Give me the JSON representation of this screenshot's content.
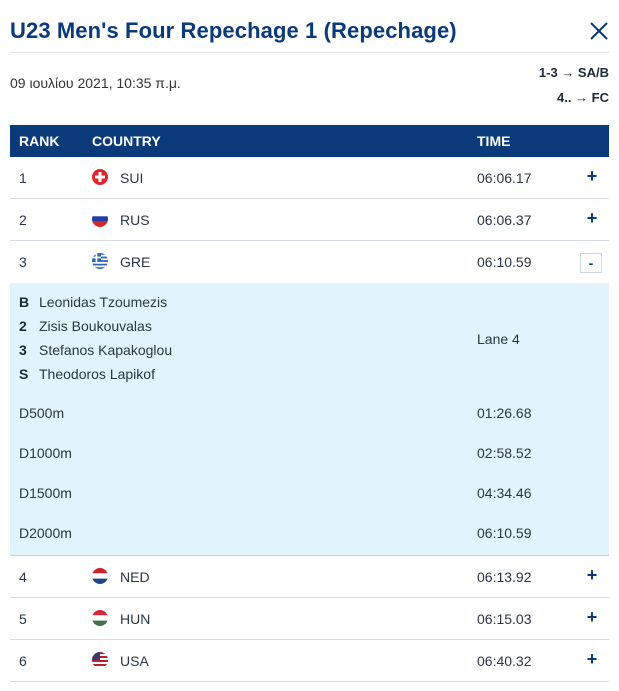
{
  "header": {
    "title": "U23 Men's Four Repechage 1 (Repechage)",
    "date": "09 ιουλίου 2021, 10:35 π.μ.",
    "progression": [
      "1-3 → SA/B",
      "4.. → FC"
    ]
  },
  "table": {
    "columns": {
      "rank": "RANK",
      "country": "COUNTRY",
      "time": "TIME"
    },
    "rows_before": [
      {
        "rank": "1",
        "country": "SUI",
        "time": "06:06.17",
        "flag": "switzerland-flag-icon",
        "toggle": "+"
      },
      {
        "rank": "2",
        "country": "RUS",
        "time": "06:06.37",
        "flag": "russia-flag-icon",
        "toggle": "+"
      },
      {
        "rank": "3",
        "country": "GRE",
        "time": "06:10.59",
        "flag": "greece-flag-icon",
        "toggle": "-"
      }
    ],
    "expanded": {
      "crew": [
        {
          "pos": "B",
          "name": "Leonidas Tzoumezis"
        },
        {
          "pos": "2",
          "name": "Zisis Boukouvalas"
        },
        {
          "pos": "3",
          "name": "Stefanos Kapakoglou"
        },
        {
          "pos": "S",
          "name": "Theodoros Lapikof"
        }
      ],
      "lane": "Lane 4",
      "splits": [
        {
          "label": "D500m",
          "time": "01:26.68"
        },
        {
          "label": "D1000m",
          "time": "02:58.52"
        },
        {
          "label": "D1500m",
          "time": "04:34.46"
        },
        {
          "label": "D2000m",
          "time": "06:10.59"
        }
      ]
    },
    "rows_after": [
      {
        "rank": "4",
        "country": "NED",
        "time": "06:13.92",
        "flag": "netherlands-flag-icon",
        "toggle": "+"
      },
      {
        "rank": "5",
        "country": "HUN",
        "time": "06:15.03",
        "flag": "hungary-flag-icon",
        "toggle": "+"
      },
      {
        "rank": "6",
        "country": "USA",
        "time": "06:40.32",
        "flag": "usa-flag-icon",
        "toggle": "+"
      }
    ]
  },
  "colors": {
    "brand": "#0a3a7a",
    "expanded_bg": "#e2f4fb"
  }
}
